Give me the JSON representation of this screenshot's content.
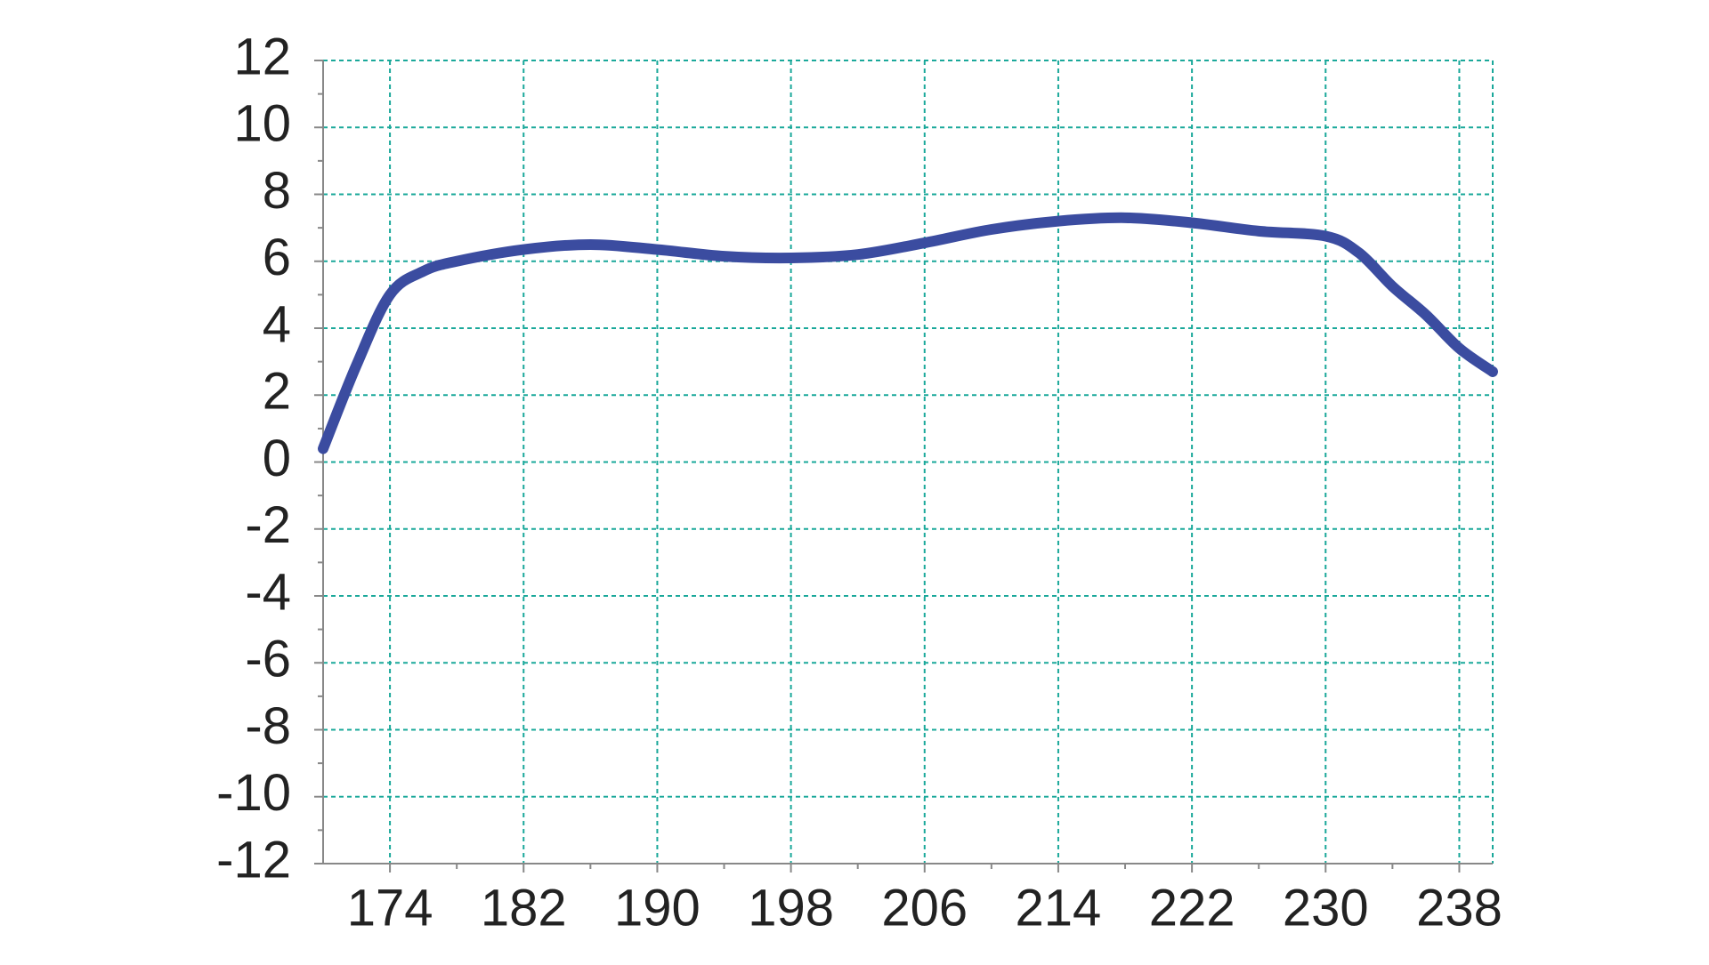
{
  "chart_data": {
    "type": "line",
    "x": [
      170,
      172,
      174,
      176,
      178,
      182,
      186,
      190,
      194,
      198,
      202,
      206,
      210,
      214,
      218,
      222,
      226,
      230,
      232,
      234,
      236,
      238,
      240
    ],
    "series": [
      {
        "color": "#3b4ca0",
        "values": [
          0.4,
          2.9,
          5.0,
          5.7,
          6.0,
          6.35,
          6.5,
          6.35,
          6.15,
          6.1,
          6.2,
          6.55,
          6.95,
          7.2,
          7.3,
          7.15,
          6.9,
          6.75,
          6.25,
          5.25,
          4.4,
          3.4,
          2.7
        ]
      }
    ],
    "xlim": [
      170,
      240
    ],
    "xticks": [
      174,
      182,
      190,
      198,
      206,
      214,
      222,
      230,
      238
    ],
    "ylim": [
      -12,
      12
    ],
    "yticks": [
      -12,
      -10,
      -8,
      -6,
      -4,
      -2,
      0,
      2,
      4,
      6,
      8,
      10,
      12
    ],
    "grid": true,
    "grid_color": "#1aa89a"
  }
}
